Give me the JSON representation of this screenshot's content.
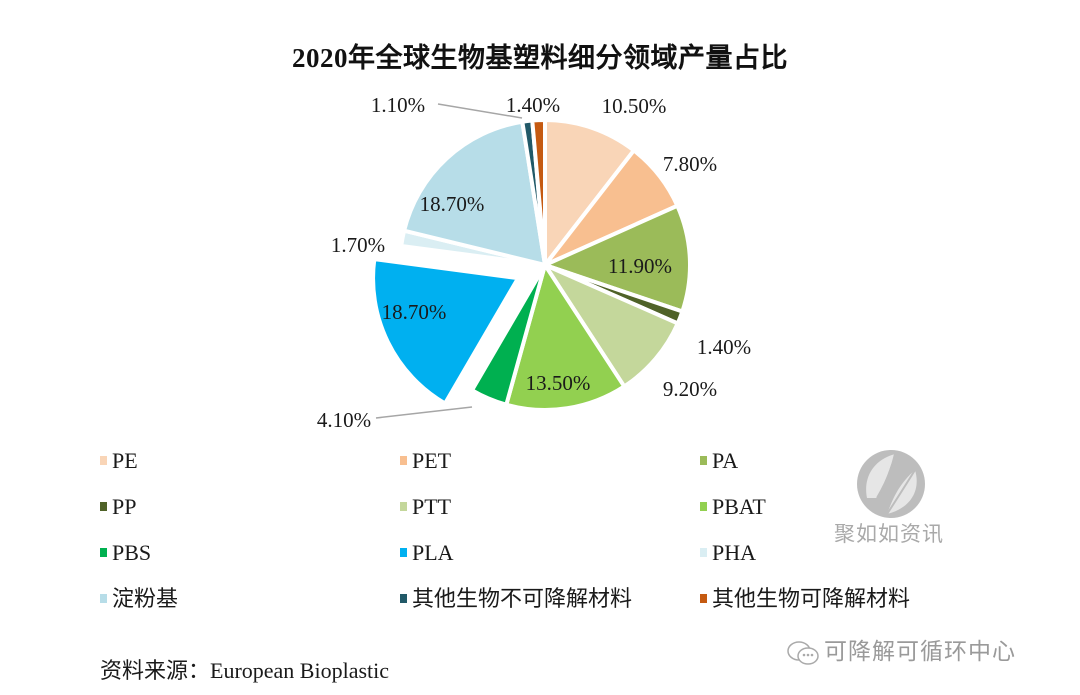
{
  "chart_data": {
    "type": "pie",
    "title": "2020年全球生物基塑料细分领域产量占比",
    "unit": "%",
    "slices": [
      {
        "name": "PE",
        "value": 10.5,
        "label": "10.50%",
        "color": "#f9d5b7",
        "label_pos": "outside"
      },
      {
        "name": "PET",
        "value": 7.8,
        "label": "7.80%",
        "color": "#f8bf90",
        "label_pos": "outside"
      },
      {
        "name": "PA",
        "value": 11.9,
        "label": "11.90%",
        "color": "#9bbb59",
        "label_pos": "inside"
      },
      {
        "name": "PP",
        "value": 1.4,
        "label": "1.40%",
        "color": "#4f6228",
        "label_pos": "outside"
      },
      {
        "name": "PTT",
        "value": 9.2,
        "label": "9.20%",
        "color": "#c4d79b",
        "label_pos": "outside"
      },
      {
        "name": "PBAT",
        "value": 13.5,
        "label": "13.50%",
        "color": "#92d050",
        "label_pos": "inside"
      },
      {
        "name": "PBS",
        "value": 4.1,
        "label": "4.10%",
        "color": "#00b050",
        "label_pos": "outside-leader"
      },
      {
        "name": "PLA",
        "value": 18.7,
        "label": "18.70%",
        "color": "#00b0f0",
        "label_pos": "inside",
        "exploded": true
      },
      {
        "name": "PHA",
        "value": 1.7,
        "label": "1.70%",
        "color": "#daeef3",
        "label_pos": "outside"
      },
      {
        "name": "淀粉基",
        "value": 18.7,
        "label": "18.70%",
        "color": "#b7dde8",
        "label_pos": "inside"
      },
      {
        "name": "其他生物不可降解材料",
        "value": 1.1,
        "label": "1.10%",
        "color": "#215968",
        "label_pos": "outside-leader"
      },
      {
        "name": "其他生物可降解材料",
        "value": 1.4,
        "label": "1.40%",
        "color": "#c55a11",
        "label_pos": "outside"
      }
    ],
    "legend_placement": "bottom",
    "start_angle": "top",
    "direction": "clockwise"
  },
  "legend": {
    "items": [
      "PE",
      "PET",
      "PA",
      "PP",
      "PTT",
      "PBAT",
      "PBS",
      "PLA",
      "PHA",
      "淀粉基",
      "其他生物不可降解材料",
      "其他生物可降解材料"
    ]
  },
  "source": "资料来源：European Bioplastic",
  "watermarks": {
    "logo_text": "聚如如资讯",
    "wechat_account": "可降解可循环中心"
  }
}
